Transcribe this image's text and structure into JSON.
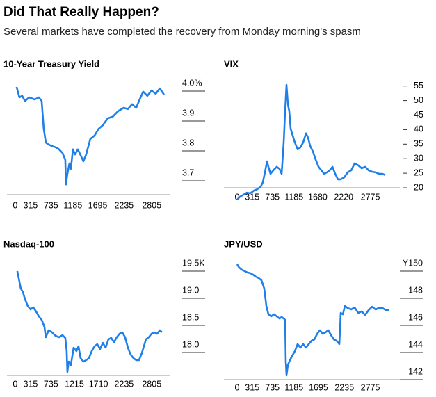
{
  "title": "Did That Really Happen?",
  "subtitle": "Several markets have completed the recovery from Monday morning's spasm",
  "chart_data": [
    {
      "type": "line",
      "title": "10-Year Treasury Yield",
      "color": "#1f7fe8",
      "xlim": [
        -170,
        3330
      ],
      "xticks": [
        0,
        315,
        735,
        1185,
        1695,
        2235,
        2805
      ],
      "ylim": [
        3.65,
        4.045
      ],
      "yticks": [
        {
          "value": 4.0,
          "label": "4.0%"
        },
        3.9,
        3.8,
        3.7
      ],
      "x": [
        29,
        86,
        143,
        200,
        286,
        400,
        486,
        543,
        586,
        629,
        686,
        757,
        829,
        900,
        971,
        1029,
        1043,
        1071,
        1114,
        1143,
        1186,
        1229,
        1286,
        1357,
        1400,
        1457,
        1543,
        1629,
        1714,
        1800,
        1900,
        2000,
        2114,
        2229,
        2314,
        2400,
        2486,
        2543,
        2629,
        2714,
        2800,
        2886,
        2971,
        3057
      ],
      "values": [
        4.014,
        3.979,
        3.984,
        3.967,
        3.979,
        3.972,
        3.979,
        3.967,
        3.874,
        3.828,
        3.821,
        3.816,
        3.812,
        3.805,
        3.793,
        3.77,
        3.688,
        3.723,
        3.758,
        3.74,
        3.805,
        3.788,
        3.805,
        3.781,
        3.765,
        3.788,
        3.84,
        3.851,
        3.874,
        3.886,
        3.909,
        3.914,
        3.933,
        3.944,
        3.94,
        3.956,
        3.944,
        3.967,
        3.998,
        3.984,
        4.002,
        3.991,
        4.009,
        3.988
      ]
    },
    {
      "type": "line",
      "title": "VIX",
      "color": "#1f7fe8",
      "xlim": [
        -275,
        3390
      ],
      "xticks": [
        0,
        315,
        735,
        1185,
        1680,
        2220,
        2775
      ],
      "ylim": [
        15.2,
        57.1
      ],
      "yticks": [
        55,
        50,
        45,
        40,
        35,
        30,
        25,
        20
      ],
      "x": [
        0,
        58,
        130,
        203,
        275,
        348,
        420,
        493,
        536,
        580,
        623,
        652,
        696,
        754,
        826,
        884,
        928,
        971,
        1000,
        1029,
        1058,
        1087,
        1116,
        1159,
        1203,
        1261,
        1319,
        1377,
        1435,
        1478,
        1522,
        1580,
        1638,
        1696,
        1754,
        1812,
        1870,
        1928,
        1986,
        2043,
        2101,
        2159,
        2232,
        2304,
        2377,
        2449,
        2522,
        2594,
        2667,
        2739,
        2812,
        2884,
        2957,
        3029,
        3087
      ],
      "values": [
        15.9,
        16.9,
        17.6,
        18.3,
        18.1,
        19.0,
        19.5,
        20.4,
        21.9,
        25.3,
        29.1,
        27.2,
        24.8,
        26.0,
        27.2,
        26.5,
        24.8,
        35.6,
        46.3,
        55.4,
        48.7,
        46.3,
        40.3,
        37.9,
        35.6,
        33.2,
        33.9,
        35.6,
        38.7,
        37.2,
        34.4,
        32.4,
        29.6,
        27.2,
        26.0,
        24.8,
        25.3,
        26.0,
        27.2,
        24.8,
        22.9,
        22.9,
        23.6,
        25.3,
        26.0,
        28.4,
        27.7,
        26.7,
        27.2,
        26.0,
        25.5,
        25.3,
        24.8,
        24.8,
        24.3
      ]
    },
    {
      "type": "line",
      "title": "Nasdaq-100",
      "color": "#1f7fe8",
      "xlim": [
        -170,
        3330
      ],
      "xticks": [
        0,
        315,
        735,
        1215,
        1710,
        2235,
        2805
      ],
      "ylim": [
        17.58,
        19.7
      ],
      "yticks": [
        {
          "value": 19.5,
          "label": "19.5K"
        },
        {
          "value": 19,
          "label": "19.0"
        },
        18.5,
        {
          "value": 18,
          "label": "18.0"
        }
      ],
      "x": [
        43,
        71,
        114,
        157,
        200,
        257,
        314,
        371,
        429,
        486,
        543,
        600,
        629,
        686,
        757,
        829,
        900,
        971,
        1029,
        1057,
        1071,
        1100,
        1143,
        1200,
        1257,
        1300,
        1343,
        1400,
        1457,
        1514,
        1571,
        1629,
        1686,
        1743,
        1800,
        1857,
        1914,
        1971,
        2029,
        2086,
        2143,
        2200,
        2257,
        2314,
        2371,
        2429,
        2486,
        2543,
        2600,
        2643,
        2686,
        2743,
        2800,
        2857,
        2914,
        2971,
        3014
      ],
      "values": [
        19.5,
        19.372,
        19.179,
        19.115,
        18.987,
        18.859,
        18.795,
        18.833,
        18.756,
        18.667,
        18.603,
        18.474,
        18.282,
        18.41,
        18.372,
        18.308,
        18.282,
        18.321,
        18.269,
        18.026,
        17.641,
        17.833,
        17.769,
        18.09,
        18.026,
        18.115,
        17.897,
        17.833,
        17.859,
        17.897,
        18.026,
        18.115,
        18.154,
        18.064,
        18.179,
        18.09,
        18.244,
        18.269,
        18.192,
        18.282,
        18.346,
        18.372,
        18.282,
        18.09,
        17.962,
        17.897,
        17.859,
        17.859,
        17.987,
        18.115,
        18.244,
        18.282,
        18.346,
        18.372,
        18.346,
        18.41,
        18.372
      ]
    },
    {
      "type": "line",
      "title": "JPY/USD",
      "color": "#1f7fe8",
      "xlim": [
        -275,
        3390
      ],
      "xticks": [
        0,
        315,
        735,
        1185,
        1695,
        2235,
        2775
      ],
      "ylim": [
        142,
        150.8
      ],
      "yticks": [
        {
          "value": 150,
          "label": "Y150"
        },
        148,
        146,
        144,
        142
      ],
      "x": [
        0,
        43,
        101,
        159,
        217,
        275,
        333,
        391,
        449,
        507,
        565,
        609,
        652,
        710,
        768,
        826,
        884,
        928,
        971,
        1000,
        1014,
        1029,
        1058,
        1101,
        1145,
        1203,
        1261,
        1319,
        1377,
        1435,
        1493,
        1551,
        1609,
        1667,
        1725,
        1783,
        1841,
        1899,
        1957,
        2014,
        2072,
        2130,
        2159,
        2203,
        2246,
        2304,
        2377,
        2449,
        2522,
        2594,
        2667,
        2739,
        2812,
        2884,
        2957,
        3029,
        3101,
        3159
      ],
      "values": [
        150.51,
        150.26,
        150.1,
        150,
        149.9,
        149.85,
        149.74,
        149.59,
        149.49,
        149.33,
        148.72,
        147.44,
        146.82,
        146.67,
        146.82,
        146.67,
        146.51,
        146.62,
        146.51,
        146.41,
        143.33,
        142.31,
        143.08,
        143.44,
        143.74,
        144.1,
        144.62,
        144.36,
        144.62,
        144.36,
        144.62,
        144.87,
        144.97,
        145.38,
        145.64,
        145.38,
        145.49,
        145.64,
        145.28,
        144.97,
        144.87,
        144.62,
        146.92,
        146.82,
        147.44,
        147.28,
        147.18,
        147.33,
        146.92,
        147.03,
        146.77,
        147.13,
        147.38,
        147.18,
        147.28,
        147.28,
        147.13,
        147.13
      ]
    }
  ]
}
